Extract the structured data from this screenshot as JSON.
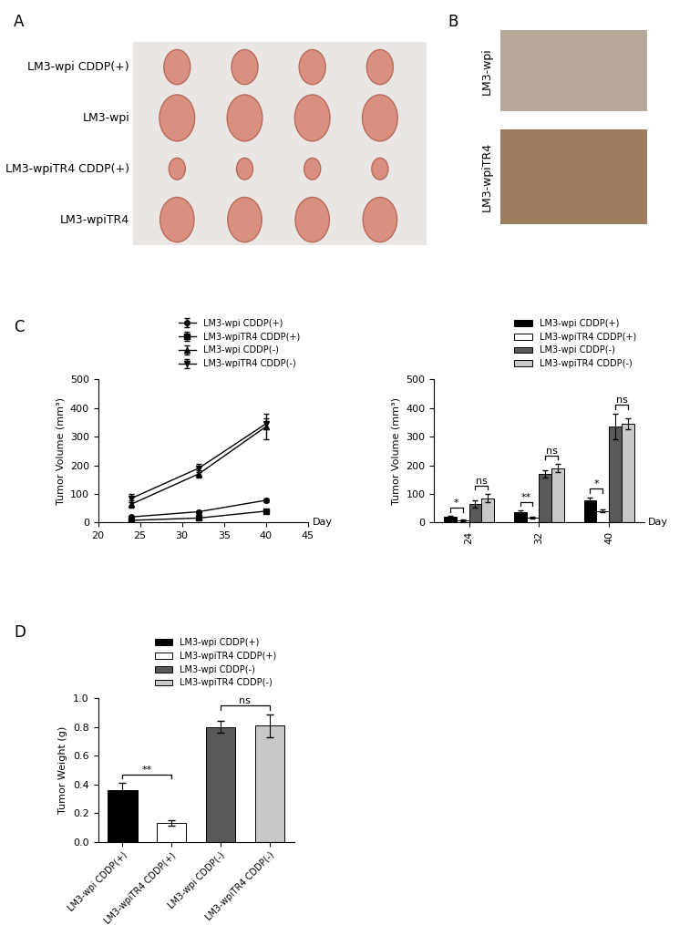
{
  "panels": {
    "A": {
      "label": "A",
      "rows": [
        "LM3-wpi CDDP(+)",
        "LM3-wpi",
        "LM3-wpiTR4 CDDP(+)",
        "LM3-wpiTR4"
      ]
    },
    "B": {
      "label": "B",
      "rows": [
        "LM3-wpi",
        "LM3-wpiTR4"
      ]
    },
    "C": {
      "label": "C"
    },
    "D": {
      "label": "D"
    }
  },
  "chart_data": [
    {
      "type": "line",
      "ylabel": "Tumor Volume (mm³)",
      "xlabel": "Day",
      "x": [
        24,
        32,
        40
      ],
      "xlim": [
        20,
        45
      ],
      "xticks": [
        20,
        25,
        30,
        35,
        40,
        45
      ],
      "ylim": [
        0,
        500
      ],
      "yticks": [
        0,
        100,
        200,
        300,
        400,
        500
      ],
      "legend": "upper right",
      "series": [
        {
          "name": "LM3-wpi CDDP(+)",
          "color": "#000000",
          "marker": "circle",
          "values": [
            20,
            38,
            78
          ],
          "errors": [
            3,
            4,
            6
          ]
        },
        {
          "name": "LM3-wpiTR4 CDDP(+)",
          "color": "#000000",
          "marker": "square",
          "values": [
            8,
            16,
            40
          ],
          "errors": [
            2,
            3,
            4
          ]
        },
        {
          "name": "LM3-wpi CDDP(-)",
          "color": "#000000",
          "marker": "triangle_up",
          "values": [
            65,
            170,
            335
          ],
          "errors": [
            12,
            12,
            45
          ]
        },
        {
          "name": "LM3-wpiTR4 CDDP(-)",
          "color": "#000000",
          "marker": "triangle_down",
          "values": [
            85,
            190,
            345
          ],
          "errors": [
            15,
            15,
            20
          ]
        }
      ]
    },
    {
      "type": "bar",
      "ylabel": "Tumor Volume (mm³)",
      "xlabel": "Day",
      "categories": [
        "24",
        "32",
        "40"
      ],
      "ylim": [
        0,
        500
      ],
      "yticks": [
        0,
        100,
        200,
        300,
        400,
        500
      ],
      "legend": "upper right",
      "series": [
        {
          "name": "LM3-wpi CDDP(+)",
          "color": "#000000",
          "values": [
            20,
            38,
            78
          ],
          "errors": [
            3,
            5,
            10
          ]
        },
        {
          "name": "LM3-wpiTR4 CDDP(+)",
          "color": "#ffffff",
          "values": [
            8,
            16,
            40
          ],
          "errors": [
            2,
            3,
            5
          ]
        },
        {
          "name": "LM3-wpi CDDP(-)",
          "color": "#595959",
          "values": [
            65,
            170,
            335
          ],
          "errors": [
            12,
            12,
            45
          ]
        },
        {
          "name": "LM3-wpiTR4 CDDP(-)",
          "color": "#c8c8c8",
          "values": [
            85,
            190,
            345
          ],
          "errors": [
            15,
            15,
            20
          ]
        }
      ],
      "annotations": [
        {
          "text": "*",
          "category": "24",
          "series": [
            "LM3-wpi CDDP(+)",
            "LM3-wpiTR4 CDDP(+)"
          ]
        },
        {
          "text": "ns",
          "category": "24",
          "series": [
            "LM3-wpi CDDP(-)",
            "LM3-wpiTR4 CDDP(-)"
          ]
        },
        {
          "text": "**",
          "category": "32",
          "series": [
            "LM3-wpi CDDP(+)",
            "LM3-wpiTR4 CDDP(+)"
          ]
        },
        {
          "text": "ns",
          "category": "32",
          "series": [
            "LM3-wpi CDDP(-)",
            "LM3-wpiTR4 CDDP(-)"
          ]
        },
        {
          "text": "*",
          "category": "40",
          "series": [
            "LM3-wpi CDDP(+)",
            "LM3-wpiTR4 CDDP(+)"
          ]
        },
        {
          "text": "ns",
          "category": "40",
          "series": [
            "LM3-wpi CDDP(-)",
            "LM3-wpiTR4 CDDP(-)"
          ]
        }
      ]
    },
    {
      "type": "bar",
      "ylabel": "Tumor Weight (g)",
      "categories": [
        "LM3-wpi CDDP(+)",
        "LM3-wpiTR4 CDDP(+)",
        "LM3-wpi CDDP(-)",
        "LM3-wpiTR4 CDDP(-)"
      ],
      "values": [
        0.36,
        0.13,
        0.8,
        0.81
      ],
      "errors": [
        0.05,
        0.02,
        0.04,
        0.08
      ],
      "colors": [
        "#000000",
        "#ffffff",
        "#595959",
        "#c8c8c8"
      ],
      "legend": "upper center",
      "ylim": [
        0,
        1.0
      ],
      "yticks": [
        {
          "value": 0,
          "label": "0.0"
        },
        {
          "value": 0.2,
          "label": "0.2"
        },
        {
          "value": 0.4,
          "label": "0.4"
        },
        {
          "value": 0.6,
          "label": "0.6"
        },
        {
          "value": 0.8,
          "label": "0.8"
        },
        {
          "value": 1.0,
          "label": "1.0"
        }
      ],
      "annotations": [
        {
          "text": "**",
          "categories": [
            "LM3-wpi CDDP(+)",
            "LM3-wpiTR4 CDDP(+)"
          ]
        },
        {
          "text": "ns",
          "categories": [
            "LM3-wpi CDDP(-)",
            "LM3-wpiTR4 CDDP(-)"
          ]
        }
      ]
    }
  ]
}
